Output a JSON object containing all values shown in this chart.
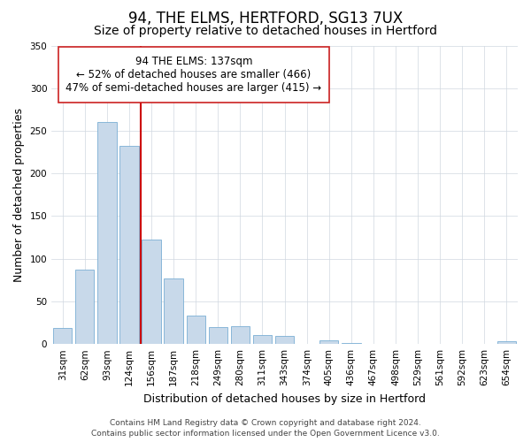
{
  "title": "94, THE ELMS, HERTFORD, SG13 7UX",
  "subtitle": "Size of property relative to detached houses in Hertford",
  "xlabel": "Distribution of detached houses by size in Hertford",
  "ylabel": "Number of detached properties",
  "categories": [
    "31sqm",
    "62sqm",
    "93sqm",
    "124sqm",
    "156sqm",
    "187sqm",
    "218sqm",
    "249sqm",
    "280sqm",
    "311sqm",
    "343sqm",
    "374sqm",
    "405sqm",
    "436sqm",
    "467sqm",
    "498sqm",
    "529sqm",
    "561sqm",
    "592sqm",
    "623sqm",
    "654sqm"
  ],
  "values": [
    19,
    87,
    260,
    232,
    122,
    77,
    33,
    20,
    21,
    11,
    9,
    0,
    4,
    1,
    0,
    0,
    0,
    0,
    0,
    0,
    3
  ],
  "bar_color": "#c8d9ea",
  "bar_edge_color": "#7aafd4",
  "vline_color": "#cc0000",
  "vline_x": 3.5,
  "annotation_line1": "94 THE ELMS: 137sqm",
  "annotation_line2": "← 52% of detached houses are smaller (466)",
  "annotation_line3": "47% of semi-detached houses are larger (415) →",
  "ylim": [
    0,
    350
  ],
  "yticks": [
    0,
    50,
    100,
    150,
    200,
    250,
    300,
    350
  ],
  "footer_line1": "Contains HM Land Registry data © Crown copyright and database right 2024.",
  "footer_line2": "Contains public sector information licensed under the Open Government Licence v3.0.",
  "title_fontsize": 12,
  "subtitle_fontsize": 10,
  "axis_label_fontsize": 9,
  "tick_fontsize": 7.5,
  "annotation_fontsize": 8.5,
  "footer_fontsize": 6.5
}
